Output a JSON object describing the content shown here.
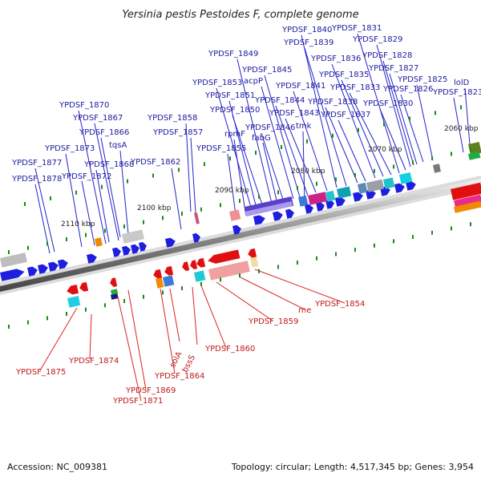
{
  "title": "Yersinia pestis Pestoides F, complete genome",
  "footer": {
    "accession": "Accession: NC_009381",
    "summary": "Topology: circular; Length: 4,517,345 bp; Genes: 3,954"
  },
  "kbp_ticks": [
    "2060 kbp",
    "2070 kbp",
    "2080 kbp",
    "2090 kbp",
    "2100 kbp",
    "2110 kbp"
  ],
  "forward_genes": [
    "lolD",
    "YPDSF_1823",
    "YPDSF_1825",
    "YPDSF_1826",
    "YPDSF_1827",
    "YPDSF_1828",
    "YPDSF_1829",
    "YPDSF_1830",
    "YPDSF_1831",
    "YPDSF_1833",
    "YPDSF_1835",
    "YPDSF_1836",
    "YPDSF_1837",
    "YPDSF_1838",
    "YPDSF_1839",
    "YPDSF_1840",
    "YPDSF_1841",
    "YPDSF_1843",
    "YPDSF_1844",
    "YPDSF_1845",
    "acpP",
    "YPDSF_1846",
    "fabG",
    "tmk",
    "YPDSF_1849",
    "YPDSF_1850",
    "YPDSF_1851",
    "YPDSF_1853",
    "rpmF",
    "YPDSF_1855",
    "YPDSF_1857",
    "YPDSF_1858",
    "YPDSF_1862",
    "YPDSF_1866",
    "tqsA",
    "YPDSF_1867",
    "YPDSF_1868",
    "YPDSF_1870",
    "YPDSF_1872",
    "YPDSF_1873",
    "YPDSF_1877",
    "YPDSF_1878"
  ],
  "reverse_genes": [
    "YPDSF_1854",
    "rne",
    "YPDSF_1859",
    "YPDSF_1860",
    "bssS",
    "solA",
    "YPDSF_1864",
    "YPDSF_1869",
    "YPDSF_1871",
    "YPDSF_1874",
    "YPDSF_1875"
  ],
  "colors": {
    "forward": "#1e1ee0",
    "reverse": "#e01010",
    "forward_label": "#1a1aa0",
    "reverse_label": "#c01818",
    "axis": "#888888",
    "tick_dot": "#1a8a1a"
  }
}
